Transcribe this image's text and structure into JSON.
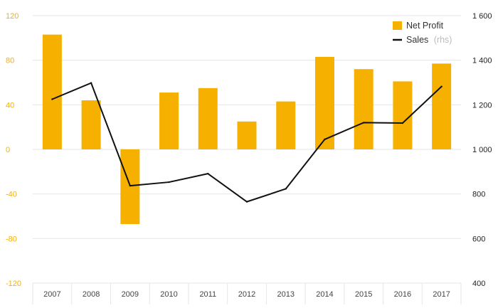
{
  "chart_data": {
    "type": "bar",
    "categories": [
      "2007",
      "2008",
      "2009",
      "2010",
      "2011",
      "2012",
      "2013",
      "2014",
      "2015",
      "2016",
      "2017"
    ],
    "series": [
      {
        "name": "Net Profit",
        "type": "bar",
        "axis": "left",
        "color": "#f6b100",
        "values": [
          103,
          44,
          -67,
          51,
          55,
          25,
          43,
          83,
          72,
          61,
          77
        ]
      },
      {
        "name": "Sales",
        "name_suffix": "(rhs)",
        "type": "line",
        "axis": "right",
        "color": "#111111",
        "values": [
          1225,
          1298,
          837,
          853,
          891,
          765,
          823,
          1045,
          1120,
          1118,
          1282
        ]
      }
    ],
    "left_axis": {
      "ylim": [
        -120,
        120
      ],
      "ticks": [
        120,
        80,
        40,
        0,
        -40,
        -80,
        -120
      ],
      "tick_labels": [
        "120",
        "80",
        "40",
        "0",
        "-40",
        "-80",
        "-120"
      ]
    },
    "right_axis": {
      "ylim": [
        400,
        1600
      ],
      "ticks": [
        1600,
        1400,
        1200,
        1000,
        800,
        600,
        400
      ],
      "tick_labels": [
        "1 600",
        "1 400",
        "1 200",
        "1 000",
        "800",
        "600",
        "400"
      ]
    },
    "legend": {
      "position": "top-right",
      "entries": [
        "Net Profit",
        "Sales"
      ]
    },
    "grid": {
      "horizontal": true,
      "vertical_separators_on_x_axis": true
    },
    "title": "",
    "xlabel": "",
    "ylabel": ""
  }
}
